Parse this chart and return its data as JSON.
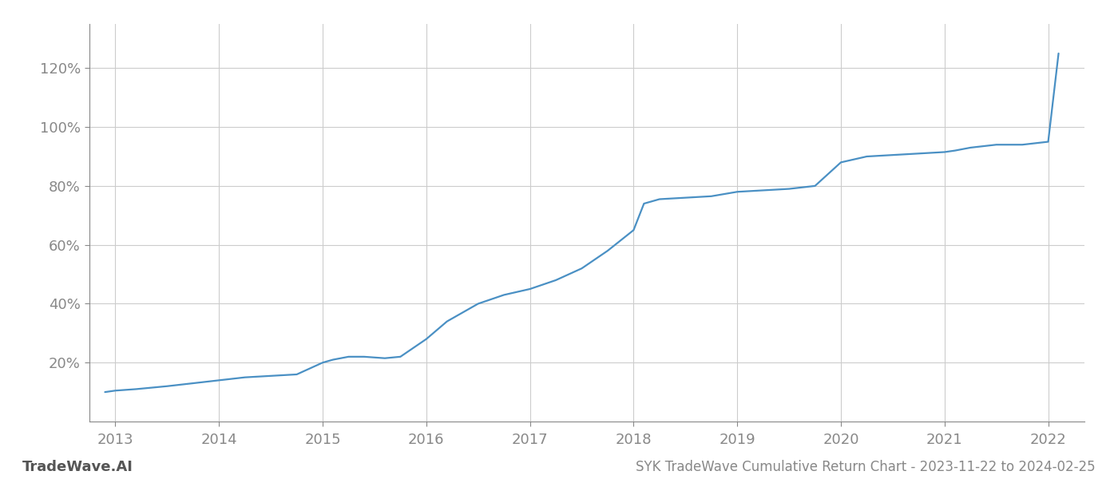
{
  "title": "SYK TradeWave Cumulative Return Chart - 2023-11-22 to 2024-02-25",
  "watermark": "TradeWave.AI",
  "line_color": "#4a90c4",
  "background_color": "#ffffff",
  "grid_color": "#cccccc",
  "x_years": [
    2012.9,
    2013.0,
    2013.2,
    2013.5,
    2013.75,
    2014.0,
    2014.25,
    2014.5,
    2014.75,
    2015.0,
    2015.1,
    2015.25,
    2015.4,
    2015.6,
    2015.75,
    2016.0,
    2016.2,
    2016.5,
    2016.75,
    2017.0,
    2017.25,
    2017.5,
    2017.75,
    2018.0,
    2018.1,
    2018.25,
    2018.5,
    2018.75,
    2019.0,
    2019.25,
    2019.5,
    2019.75,
    2020.0,
    2020.25,
    2020.5,
    2020.75,
    2021.0,
    2021.1,
    2021.25,
    2021.5,
    2021.75,
    2022.0,
    2022.1
  ],
  "y_values": [
    10,
    10.5,
    11,
    12,
    13,
    14,
    15,
    15.5,
    16,
    20,
    21,
    22,
    22,
    21.5,
    22,
    28,
    34,
    40,
    43,
    45,
    48,
    52,
    58,
    65,
    74,
    75.5,
    76,
    76.5,
    78,
    78.5,
    79,
    80,
    88,
    90,
    90.5,
    91,
    91.5,
    92,
    93,
    94,
    94,
    95,
    125
  ],
  "xlim": [
    2012.75,
    2022.35
  ],
  "ylim": [
    0,
    135
  ],
  "yticks": [
    20,
    40,
    60,
    80,
    100,
    120
  ],
  "ytick_labels": [
    "20%",
    "40%",
    "60%",
    "80%",
    "100%",
    "120%"
  ],
  "xticks": [
    2013,
    2014,
    2015,
    2016,
    2017,
    2018,
    2019,
    2020,
    2021,
    2022
  ],
  "xtick_labels": [
    "2013",
    "2014",
    "2015",
    "2016",
    "2017",
    "2018",
    "2019",
    "2020",
    "2021",
    "2022"
  ],
  "tick_color": "#888888",
  "label_fontsize": 13,
  "title_fontsize": 12,
  "watermark_fontsize": 13,
  "line_width": 1.6
}
